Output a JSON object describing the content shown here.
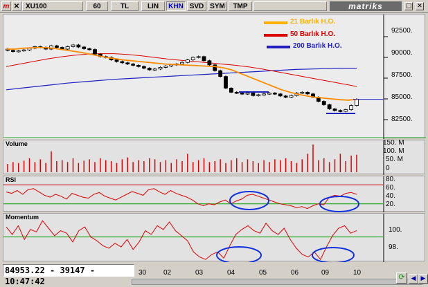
{
  "toolbar": {
    "menu_label": "m",
    "symbol": "XU100",
    "period": "60",
    "currency": "TL",
    "scale": "LIN",
    "mode": "KHN",
    "btn_svd": "SVD",
    "btn_sym": "SYM",
    "btn_tmp": "TMP",
    "logo": "matriks"
  },
  "legend": [
    {
      "label": "21 Barlık H.O.",
      "color": "#ffb000"
    },
    {
      "label": "50 Barlık H.O.",
      "color": "#dd0000"
    },
    {
      "label": "200 Barlık H.O.",
      "color": "#2020c0"
    }
  ],
  "panels": {
    "volume": {
      "title": "Volume",
      "ticks": [
        "150. M",
        "100. M",
        "50. M",
        "0"
      ]
    },
    "rsi": {
      "title": "RSI",
      "ticks": [
        "80.",
        "60.",
        "40.",
        "20."
      ]
    },
    "momentum": {
      "title": "Momentum",
      "ticks": [
        "100.",
        "98."
      ]
    }
  },
  "price_ticks": [
    "92500.",
    "90000.",
    "87500.",
    "85000.",
    "82500."
  ],
  "x_labels": [
    "30",
    "02",
    "03",
    "04",
    "05",
    "06",
    "09",
    "10"
  ],
  "readout": "84953.22 - 39147 - 10:47:42",
  "chart_data": {
    "type": "candlestick",
    "price_close": [
      90850,
      90700,
      90800,
      90900,
      91100,
      91300,
      91200,
      91000,
      91400,
      91200,
      91000,
      91300,
      91500,
      91250,
      91050,
      90950,
      90400,
      90100,
      90000,
      89700,
      89500,
      89350,
      89200,
      89050,
      88900,
      88700,
      88500,
      88600,
      88800,
      88950,
      89100,
      89200,
      89400,
      89700,
      90000,
      90100,
      89600,
      89100,
      88400,
      87700,
      86300,
      85800,
      85700,
      85600,
      85700,
      85400,
      85500,
      85600,
      85700,
      85600,
      85350,
      85200,
      85400,
      85700,
      85800,
      85600,
      85200,
      84700,
      84300,
      83800,
      83600,
      83500,
      83700,
      84200,
      84953
    ],
    "ma21": [
      91000,
      91000,
      91100,
      91150,
      91200,
      91150,
      91050,
      90900,
      90750,
      90600,
      90400,
      90200,
      90000,
      89850,
      89700,
      89600,
      89500,
      89400,
      89300,
      89200,
      89150,
      89100,
      89050,
      89000,
      88950,
      88900,
      88750,
      88500,
      88100,
      87700,
      87300,
      86900,
      86500,
      86100,
      85800,
      85550,
      85350,
      85200,
      85100,
      85000,
      84900,
      84850,
      84950
    ],
    "ma50": [
      88900,
      89200,
      89500,
      89800,
      90050,
      90250,
      90400,
      90450,
      90450,
      90350,
      90200,
      90000,
      89800,
      89650,
      89500,
      89350,
      89200,
      89050,
      88850,
      88600,
      88300,
      88000,
      87700,
      87400,
      87100,
      86800,
      86500
    ],
    "ma200": [
      86100,
      86300,
      86500,
      86700,
      86900,
      87050,
      87200,
      87350,
      87450,
      87550,
      87650,
      87750,
      87850,
      87950,
      88050,
      88150,
      88250,
      88350,
      88450,
      88550,
      88600,
      88650,
      88700,
      88700
    ],
    "volume": [
      18,
      22,
      20,
      25,
      30,
      22,
      28,
      20,
      45,
      24,
      26,
      22,
      30,
      20,
      25,
      28,
      22,
      30,
      26,
      24,
      20,
      28,
      32,
      22,
      26,
      24,
      30,
      28,
      22,
      26,
      20,
      28,
      24,
      40,
      22,
      26,
      30,
      22,
      24,
      28,
      20,
      26,
      30,
      22,
      28,
      24,
      20,
      26,
      22,
      28,
      26,
      30,
      24,
      20,
      28,
      40,
      60,
      26,
      30,
      22,
      28,
      40,
      24,
      36,
      38
    ],
    "rsi": [
      55,
      52,
      58,
      50,
      60,
      62,
      55,
      48,
      44,
      50,
      46,
      40,
      52,
      48,
      44,
      42,
      50,
      54,
      46,
      42,
      38,
      44,
      50,
      56,
      52,
      48,
      60,
      62,
      55,
      50,
      58,
      52,
      48,
      44,
      38,
      30,
      26,
      30,
      28,
      34,
      38,
      30,
      36,
      40,
      48,
      50,
      46,
      42,
      38,
      34,
      30,
      28,
      26,
      22,
      24,
      20,
      26,
      30,
      28,
      44,
      48,
      46,
      52,
      54,
      50
    ],
    "momentum": [
      101.6,
      100.4,
      101.8,
      99.6,
      101.2,
      100.8,
      102.6,
      101.4,
      100.2,
      101.0,
      100.6,
      99.2,
      101.0,
      101.6,
      100.0,
      99.4,
      98.6,
      98.2,
      99.0,
      98.4,
      99.6,
      98.0,
      99.2,
      101.0,
      100.4,
      101.8,
      101.2,
      102.4,
      101.0,
      100.2,
      99.4,
      97.6,
      96.8,
      96.4,
      97.2,
      97.6,
      96.6,
      98.6,
      100.4,
      101.2,
      101.8,
      101.0,
      100.6,
      102.2,
      101.0,
      100.4,
      101.4,
      99.6,
      98.2,
      97.2,
      96.8,
      97.6,
      96.4,
      98.4,
      100.2,
      101.4,
      101.8,
      100.6,
      101.0
    ],
    "ylim_price": [
      81000,
      94500
    ],
    "ylim_rsi": [
      15,
      85
    ],
    "ylim_momentum": [
      96.2,
      103.5
    ]
  }
}
